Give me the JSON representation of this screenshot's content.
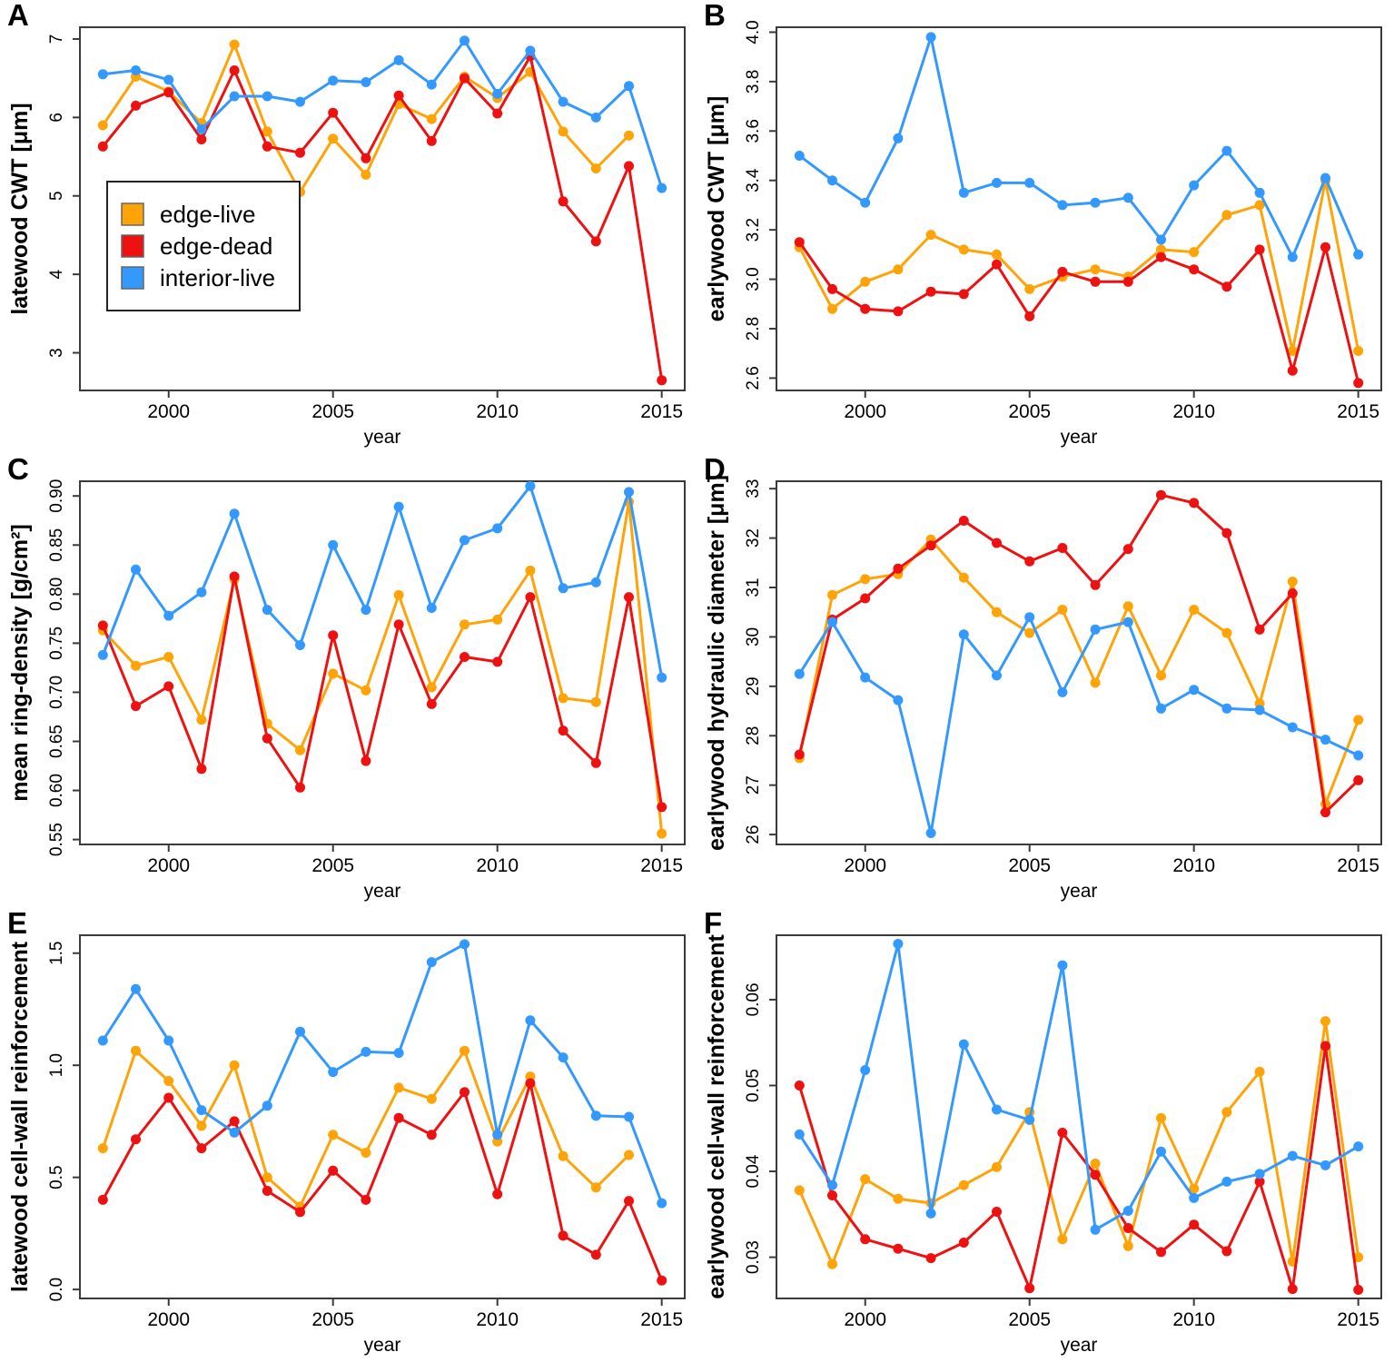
{
  "figure": {
    "xlabel": "year",
    "background": "#ffffff",
    "axis_color": "#3a3a3a",
    "legend": {
      "entries": [
        {
          "label": "edge-live",
          "color": "#FFA408"
        },
        {
          "label": "edge-dead",
          "color": "#EE1111"
        },
        {
          "label": "interior-live",
          "color": "#3399FF"
        }
      ]
    }
  },
  "chart_data": [
    {
      "panel": "A",
      "type": "line",
      "ylabel": "latewood CWT [μm]",
      "xlabel": "year",
      "xlim": [
        1997.3,
        2015.7
      ],
      "ylim": [
        2.52,
        7.15
      ],
      "xticks": [
        2000,
        2005,
        2010,
        2015
      ],
      "yticks": [
        3,
        4,
        5,
        6,
        7
      ],
      "ytick_labels": [
        "3",
        "4",
        "5",
        "6",
        "7"
      ],
      "legend": true,
      "grid": false,
      "x": [
        1998,
        1999,
        2000,
        2001,
        2002,
        2003,
        2004,
        2005,
        2006,
        2007,
        2008,
        2009,
        2010,
        2011,
        2012,
        2013,
        2014,
        2015
      ],
      "series": [
        {
          "name": "edge-live",
          "color": "#FFA408",
          "values": [
            5.9,
            6.52,
            6.33,
            5.93,
            6.93,
            5.82,
            5.05,
            5.73,
            5.27,
            6.17,
            5.98,
            6.52,
            6.25,
            6.58,
            5.82,
            5.35,
            5.77,
            null
          ]
        },
        {
          "name": "edge-dead",
          "color": "#EE1111",
          "values": [
            5.63,
            6.15,
            6.32,
            5.72,
            6.6,
            5.63,
            5.55,
            6.06,
            5.48,
            6.28,
            5.7,
            6.5,
            6.05,
            6.78,
            4.93,
            4.42,
            5.38,
            2.65
          ]
        },
        {
          "name": "interior-live",
          "color": "#3399FF",
          "values": [
            6.55,
            6.6,
            6.48,
            5.85,
            6.27,
            6.27,
            6.2,
            6.47,
            6.45,
            6.73,
            6.42,
            6.98,
            6.3,
            6.85,
            6.2,
            6.0,
            6.4,
            5.1
          ]
        }
      ]
    },
    {
      "panel": "B",
      "type": "line",
      "ylabel": "earlywood CWT [μm]",
      "xlabel": "year",
      "xlim": [
        1997.3,
        2015.7
      ],
      "ylim": [
        2.55,
        4.02
      ],
      "xticks": [
        2000,
        2005,
        2010,
        2015
      ],
      "yticks": [
        2.6,
        2.8,
        3.0,
        3.2,
        3.4,
        3.6,
        3.8,
        4.0
      ],
      "ytick_labels": [
        "2.6",
        "2.8",
        "3.0",
        "3.2",
        "3.4",
        "3.6",
        "3.8",
        "4.0"
      ],
      "legend": false,
      "grid": false,
      "x": [
        1998,
        1999,
        2000,
        2001,
        2002,
        2003,
        2004,
        2005,
        2006,
        2007,
        2008,
        2009,
        2010,
        2011,
        2012,
        2013,
        2014,
        2015
      ],
      "series": [
        {
          "name": "edge-live",
          "color": "#FFA408",
          "values": [
            3.13,
            2.88,
            2.99,
            3.04,
            3.18,
            3.12,
            3.1,
            2.96,
            3.01,
            3.04,
            3.01,
            3.12,
            3.11,
            3.26,
            3.3,
            2.71,
            3.4,
            2.71
          ]
        },
        {
          "name": "edge-dead",
          "color": "#EE1111",
          "values": [
            3.15,
            2.96,
            2.88,
            2.87,
            2.95,
            2.94,
            3.06,
            2.85,
            3.03,
            2.99,
            2.99,
            3.09,
            3.04,
            2.97,
            3.12,
            2.63,
            3.13,
            2.58
          ]
        },
        {
          "name": "interior-live",
          "color": "#3399FF",
          "values": [
            3.5,
            3.4,
            3.31,
            3.57,
            3.98,
            3.35,
            3.39,
            3.39,
            3.3,
            3.31,
            3.33,
            3.16,
            3.38,
            3.52,
            3.35,
            3.09,
            3.41,
            3.1
          ]
        }
      ]
    },
    {
      "panel": "C",
      "type": "line",
      "ylabel": "mean ring-density [g/cm²]",
      "xlabel": "year",
      "xlim": [
        1997.3,
        2015.7
      ],
      "ylim": [
        0.545,
        0.915
      ],
      "xticks": [
        2000,
        2005,
        2010,
        2015
      ],
      "yticks": [
        0.55,
        0.6,
        0.65,
        0.7,
        0.75,
        0.8,
        0.85,
        0.9
      ],
      "ytick_labels": [
        "0.55",
        "0.60",
        "0.65",
        "0.70",
        "0.75",
        "0.80",
        "0.85",
        "0.90"
      ],
      "legend": false,
      "grid": false,
      "x": [
        1998,
        1999,
        2000,
        2001,
        2002,
        2003,
        2004,
        2005,
        2006,
        2007,
        2008,
        2009,
        2010,
        2011,
        2012,
        2013,
        2014,
        2015
      ],
      "series": [
        {
          "name": "edge-live",
          "color": "#FFA408",
          "values": [
            0.763,
            0.727,
            0.736,
            0.672,
            0.815,
            0.668,
            0.641,
            0.719,
            0.702,
            0.799,
            0.705,
            0.769,
            0.774,
            0.824,
            0.694,
            0.69,
            0.894,
            0.556
          ]
        },
        {
          "name": "edge-dead",
          "color": "#EE1111",
          "values": [
            0.768,
            0.686,
            0.706,
            0.622,
            0.818,
            0.653,
            0.603,
            0.758,
            0.63,
            0.769,
            0.688,
            0.736,
            0.731,
            0.797,
            0.661,
            0.628,
            0.797,
            0.583
          ]
        },
        {
          "name": "interior-live",
          "color": "#3399FF",
          "values": [
            0.738,
            0.825,
            0.778,
            0.802,
            0.882,
            0.784,
            0.748,
            0.85,
            0.784,
            0.889,
            0.786,
            0.855,
            0.867,
            0.91,
            0.806,
            0.812,
            0.904,
            0.715
          ]
        }
      ]
    },
    {
      "panel": "D",
      "type": "line",
      "ylabel": "earlywood hydraulic diameter [μm]",
      "xlabel": "year",
      "xlim": [
        1997.3,
        2015.7
      ],
      "ylim": [
        25.8,
        33.15
      ],
      "xticks": [
        2000,
        2005,
        2010,
        2015
      ],
      "yticks": [
        26,
        27,
        28,
        29,
        30,
        31,
        32,
        33
      ],
      "ytick_labels": [
        "26",
        "27",
        "28",
        "29",
        "30",
        "31",
        "32",
        "33"
      ],
      "legend": false,
      "grid": false,
      "x": [
        1998,
        1999,
        2000,
        2001,
        2002,
        2003,
        2004,
        2005,
        2006,
        2007,
        2008,
        2009,
        2010,
        2011,
        2012,
        2013,
        2014,
        2015
      ],
      "series": [
        {
          "name": "edge-live",
          "color": "#FFA408",
          "values": [
            27.55,
            30.85,
            31.17,
            31.27,
            31.97,
            31.2,
            30.5,
            30.08,
            30.55,
            29.07,
            30.62,
            29.22,
            30.55,
            30.08,
            28.65,
            31.12,
            26.62,
            28.32
          ]
        },
        {
          "name": "edge-dead",
          "color": "#EE1111",
          "values": [
            27.62,
            30.35,
            30.78,
            31.38,
            31.85,
            32.35,
            31.9,
            31.53,
            31.8,
            31.05,
            31.78,
            32.87,
            32.71,
            32.1,
            30.15,
            30.88,
            26.45,
            27.1
          ]
        },
        {
          "name": "interior-live",
          "color": "#3399FF",
          "values": [
            29.25,
            30.3,
            29.18,
            28.72,
            26.03,
            30.05,
            29.22,
            30.4,
            28.88,
            30.15,
            30.3,
            28.55,
            28.93,
            28.55,
            28.52,
            28.17,
            27.92,
            27.6
          ]
        }
      ]
    },
    {
      "panel": "E",
      "type": "line",
      "ylabel": "latewood cell-wall reinforcement",
      "xlabel": "year",
      "xlim": [
        1997.3,
        2015.7
      ],
      "ylim": [
        -0.04,
        1.58
      ],
      "xticks": [
        2000,
        2005,
        2010,
        2015
      ],
      "yticks": [
        0.0,
        0.5,
        1.0,
        1.5
      ],
      "ytick_labels": [
        "0.0",
        "0.5",
        "1.0",
        "1.5"
      ],
      "legend": false,
      "grid": false,
      "x": [
        1998,
        1999,
        2000,
        2001,
        2002,
        2003,
        2004,
        2005,
        2006,
        2007,
        2008,
        2009,
        2010,
        2011,
        2012,
        2013,
        2014,
        2015
      ],
      "series": [
        {
          "name": "edge-live",
          "color": "#FFA408",
          "values": [
            0.63,
            1.065,
            0.93,
            0.73,
            1.0,
            0.5,
            0.37,
            0.69,
            0.61,
            0.9,
            0.85,
            1.065,
            0.66,
            0.95,
            0.595,
            0.455,
            0.6,
            null
          ]
        },
        {
          "name": "edge-dead",
          "color": "#EE1111",
          "values": [
            0.4,
            0.67,
            0.855,
            0.63,
            0.75,
            0.44,
            0.345,
            0.53,
            0.4,
            0.765,
            0.69,
            0.88,
            0.425,
            0.92,
            0.24,
            0.155,
            0.395,
            0.04
          ]
        },
        {
          "name": "interior-live",
          "color": "#3399FF",
          "values": [
            1.11,
            1.34,
            1.11,
            0.8,
            0.7,
            0.82,
            1.15,
            0.97,
            1.06,
            1.055,
            1.46,
            1.54,
            0.69,
            1.2,
            1.035,
            0.775,
            0.77,
            0.385
          ]
        }
      ]
    },
    {
      "panel": "F",
      "type": "line",
      "ylabel": "earlywood cell-wall reinforcement",
      "xlabel": "year",
      "xlim": [
        1997.3,
        2015.7
      ],
      "ylim": [
        0.0252,
        0.0675
      ],
      "xticks": [
        2000,
        2005,
        2010,
        2015
      ],
      "yticks": [
        0.03,
        0.04,
        0.05,
        0.06
      ],
      "ytick_labels": [
        "0.03",
        "0.04",
        "0.05",
        "0.06"
      ],
      "legend": false,
      "grid": false,
      "x": [
        1998,
        1999,
        2000,
        2001,
        2002,
        2003,
        2004,
        2005,
        2006,
        2007,
        2008,
        2009,
        2010,
        2011,
        2012,
        2013,
        2014,
        2015
      ],
      "series": [
        {
          "name": "edge-live",
          "color": "#FFA408",
          "values": [
            0.0378,
            0.0292,
            0.0391,
            0.0368,
            0.0363,
            0.0384,
            0.0405,
            0.0469,
            0.0321,
            0.0409,
            0.0313,
            0.0462,
            0.038,
            0.0469,
            0.0516,
            0.0295,
            0.0575,
            0.03
          ]
        },
        {
          "name": "edge-dead",
          "color": "#EE1111",
          "values": [
            0.05,
            0.0372,
            0.0321,
            0.031,
            0.0299,
            0.0317,
            0.0353,
            0.0264,
            0.0445,
            0.0396,
            0.0334,
            0.0306,
            0.0338,
            0.0307,
            0.0388,
            0.0263,
            0.0546,
            0.0262
          ]
        },
        {
          "name": "interior-live",
          "color": "#3399FF",
          "values": [
            0.0443,
            0.0384,
            0.0518,
            0.0665,
            0.0351,
            0.0548,
            0.0472,
            0.046,
            0.064,
            0.0332,
            0.0354,
            0.0423,
            0.0369,
            0.0388,
            0.0397,
            0.0418,
            0.0407,
            0.0429
          ]
        }
      ]
    }
  ]
}
